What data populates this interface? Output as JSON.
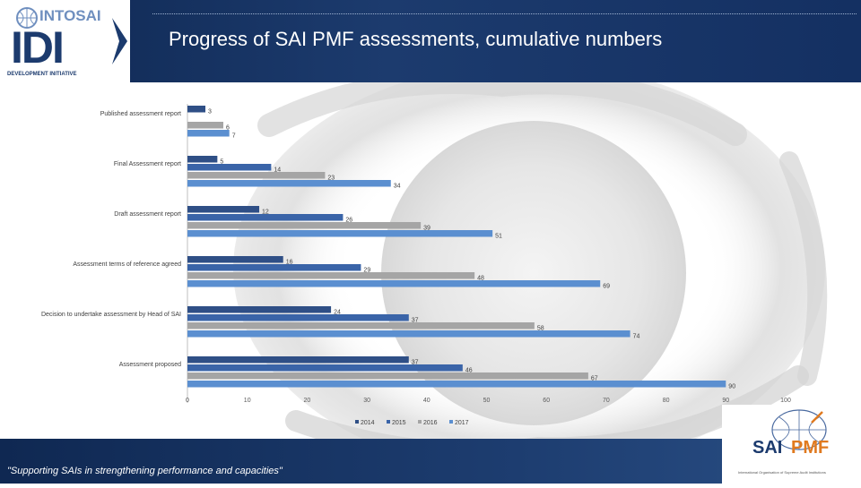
{
  "slide": {
    "title": "Progress of SAI PMF assessments, cumulative numbers",
    "slogan": "\"Supporting SAIs in strengthening performance and capacities\""
  },
  "logo_left": {
    "top_text": "INTOSAI",
    "main_text": "IDI",
    "sub_text": "DEVELOPMENT INITIATIVE"
  },
  "logo_right": {
    "text_a": "SAI",
    "text_b": "PMF",
    "caption": "International Organisation of Supreme Audit Institutions"
  },
  "colors": {
    "series_2014": "#2f4f86",
    "series_2015": "#3a64a8",
    "series_2016": "#a5a5a5",
    "series_2017": "#5b8fd0",
    "header": "#1c3b6e"
  },
  "chart_data": {
    "type": "bar",
    "orientation": "horizontal",
    "title": "Progress of SAI PMF assessments, cumulative numbers",
    "categories": [
      "Published assessment report",
      "Final Assessment report",
      "Draft assessment report",
      "Assessment terms of reference agreed",
      "Decision to undertake assessment by Head of SAI",
      "Assessment proposed"
    ],
    "series": [
      {
        "name": "2014",
        "values": [
          3,
          5,
          12,
          16,
          24,
          37
        ]
      },
      {
        "name": "2015",
        "values": [
          null,
          14,
          26,
          29,
          37,
          46
        ]
      },
      {
        "name": "2016",
        "values": [
          6,
          23,
          39,
          48,
          58,
          67
        ]
      },
      {
        "name": "2017",
        "values": [
          7,
          34,
          51,
          69,
          74,
          90
        ]
      }
    ],
    "xlim": [
      0,
      100
    ],
    "xticks": [
      "0",
      "10",
      "20",
      "30",
      "40",
      "50",
      "60",
      "70",
      "80",
      "90",
      "100"
    ],
    "legend": [
      "2014",
      "2015",
      "2016",
      "2017"
    ],
    "legend_position": "bottom",
    "grid": false
  }
}
